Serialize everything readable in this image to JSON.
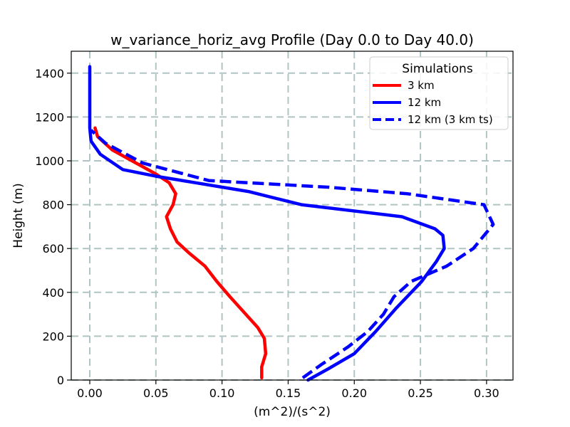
{
  "chart_data": {
    "type": "line",
    "title": "w_variance_horiz_avg Profile (Day 0.0 to Day 40.0)",
    "xlabel": "(m^2)/(s^2)",
    "ylabel": "Height (m)",
    "xlim": [
      -0.014,
      0.32
    ],
    "ylim": [
      0,
      1500
    ],
    "grid": true,
    "x_ticks": [
      0.0,
      0.05,
      0.1,
      0.15,
      0.2,
      0.25,
      0.3
    ],
    "x_tick_labels": [
      "0.00",
      "0.05",
      "0.10",
      "0.15",
      "0.20",
      "0.25",
      "0.30"
    ],
    "y_ticks": [
      0,
      200,
      400,
      600,
      800,
      1000,
      1200,
      1400
    ],
    "y_tick_labels": [
      "0",
      "200",
      "400",
      "600",
      "800",
      "1000",
      "1200",
      "1400"
    ],
    "legend": {
      "title": "Simulations",
      "placement": "top-right"
    },
    "series": [
      {
        "name": "3 km",
        "color": "#ff0000",
        "style": "solid",
        "points": [
          [
            0.13,
            10
          ],
          [
            0.13,
            60
          ],
          [
            0.133,
            120
          ],
          [
            0.132,
            190
          ],
          [
            0.127,
            240
          ],
          [
            0.118,
            300
          ],
          [
            0.106,
            380
          ],
          [
            0.096,
            450
          ],
          [
            0.087,
            520
          ],
          [
            0.075,
            580
          ],
          [
            0.066,
            630
          ],
          [
            0.061,
            690
          ],
          [
            0.058,
            745
          ],
          [
            0.063,
            800
          ],
          [
            0.065,
            850
          ],
          [
            0.06,
            900
          ],
          [
            0.05,
            940
          ],
          [
            0.035,
            990
          ],
          [
            0.017,
            1050
          ],
          [
            0.006,
            1110
          ],
          [
            0.004,
            1150
          ]
        ]
      },
      {
        "name": "12 km",
        "color": "#0000ff",
        "style": "solid",
        "points": [
          [
            0.165,
            0
          ],
          [
            0.18,
            50
          ],
          [
            0.2,
            120
          ],
          [
            0.216,
            220
          ],
          [
            0.232,
            330
          ],
          [
            0.251,
            450
          ],
          [
            0.262,
            540
          ],
          [
            0.268,
            600
          ],
          [
            0.267,
            660
          ],
          [
            0.261,
            690
          ],
          [
            0.236,
            745
          ],
          [
            0.16,
            800
          ],
          [
            0.12,
            860
          ],
          [
            0.08,
            900
          ],
          [
            0.05,
            930
          ],
          [
            0.025,
            960
          ],
          [
            0.008,
            1030
          ],
          [
            0.001,
            1090
          ],
          [
            0.0,
            1150
          ],
          [
            0.0,
            1250
          ],
          [
            0.0,
            1350
          ],
          [
            0.0,
            1430
          ]
        ]
      },
      {
        "name": "12 km (3 km ts)",
        "color": "#0000ff",
        "style": "dashed",
        "points": [
          [
            0.161,
            10
          ],
          [
            0.175,
            70
          ],
          [
            0.195,
            150
          ],
          [
            0.21,
            220
          ],
          [
            0.222,
            300
          ],
          [
            0.23,
            380
          ],
          [
            0.243,
            450
          ],
          [
            0.27,
            520
          ],
          [
            0.29,
            600
          ],
          [
            0.305,
            710
          ],
          [
            0.298,
            800
          ],
          [
            0.24,
            850
          ],
          [
            0.18,
            880
          ],
          [
            0.09,
            910
          ],
          [
            0.04,
            990
          ],
          [
            0.012,
            1080
          ],
          [
            0.001,
            1140
          ]
        ]
      }
    ]
  }
}
